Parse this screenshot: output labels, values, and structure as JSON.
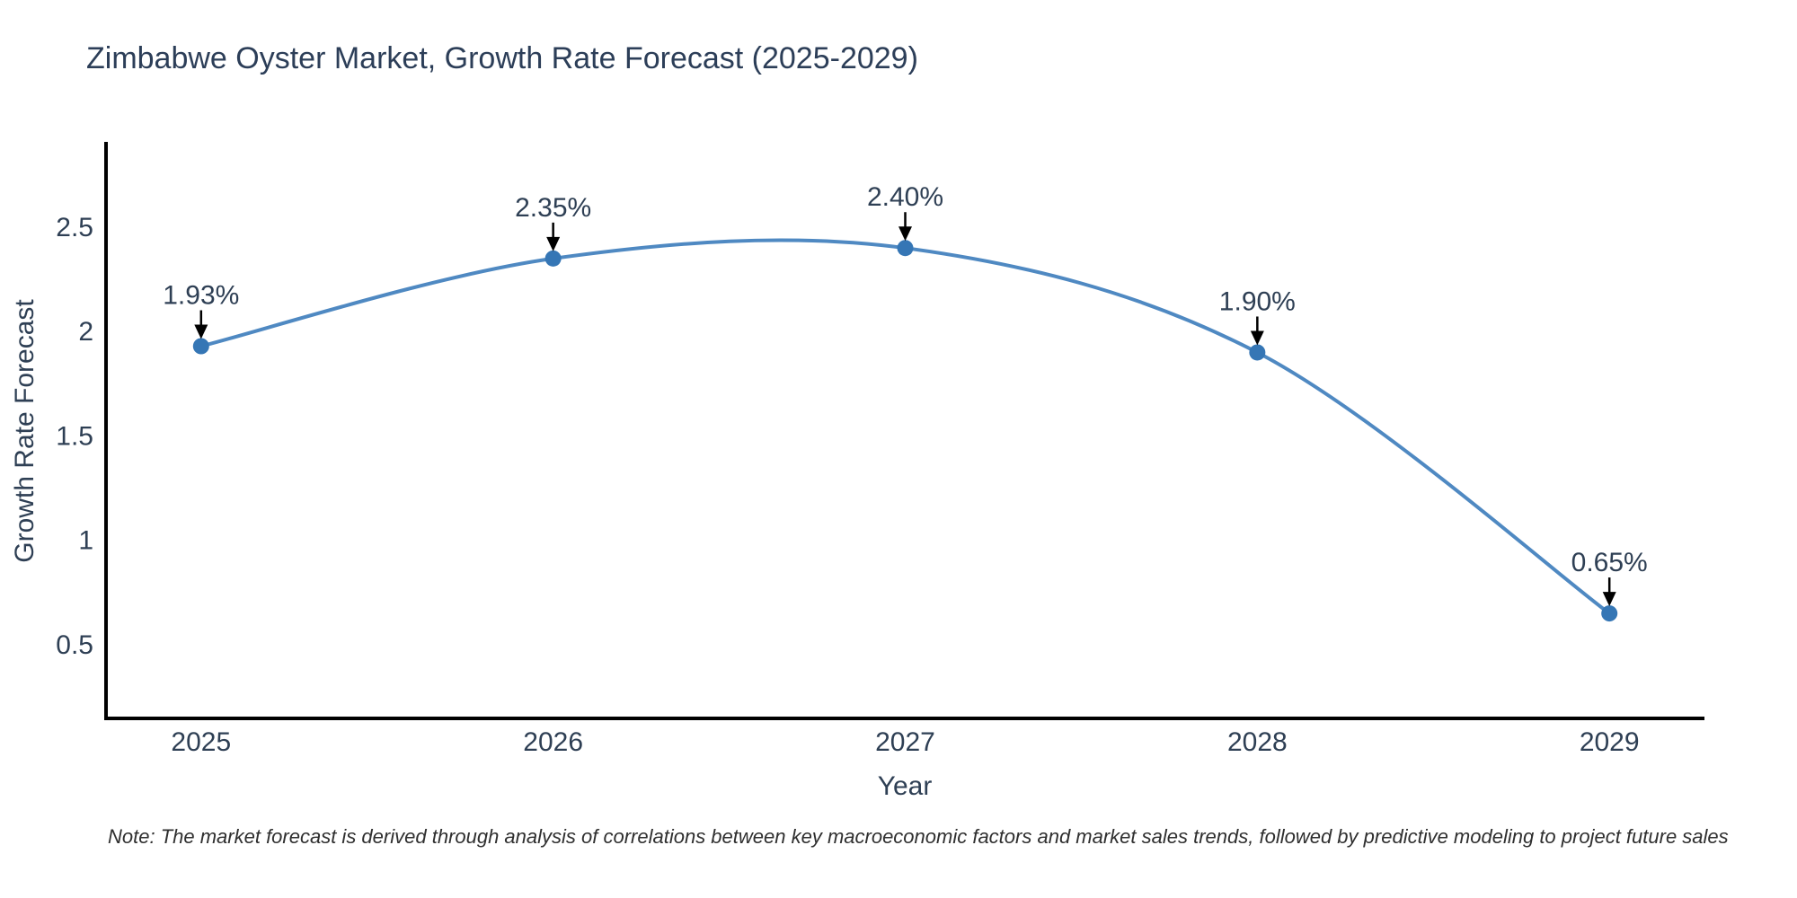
{
  "title": "Zimbabwe Oyster Market, Growth Rate Forecast (2025-2029)",
  "note": "Note: The market forecast is derived through analysis of correlations between key macroeconomic factors and market sales trends, followed by predictive modeling to project future sales",
  "colors": {
    "text": "#2e3f54",
    "title": "#2c3e58",
    "note": "#2f2f2f",
    "axis_line": "#000000",
    "annotation_arrow": "#000000",
    "background": "#ffffff"
  },
  "chart_data": {
    "type": "line",
    "title": "Zimbabwe Oyster Market, Growth Rate Forecast (2025-2029)",
    "xlabel": "Year",
    "ylabel": "Growth Rate Forecast",
    "categories": [
      2025,
      2026,
      2027,
      2028,
      2029
    ],
    "values": [
      1.93,
      2.35,
      2.4,
      1.9,
      0.65
    ],
    "labels": [
      "1.93%",
      "2.35%",
      "2.40%",
      "1.90%",
      "0.65%"
    ],
    "ytick_labels": [
      "0.5",
      "1",
      "1.5",
      "2",
      "2.5"
    ],
    "ylim": [
      0.147,
      2.9
    ],
    "xlim": [
      2024.73,
      2029.27
    ],
    "grid": false,
    "legend": "none",
    "curve": "spline",
    "line_color": "#4f89c2",
    "marker_color": "#3576b5"
  }
}
